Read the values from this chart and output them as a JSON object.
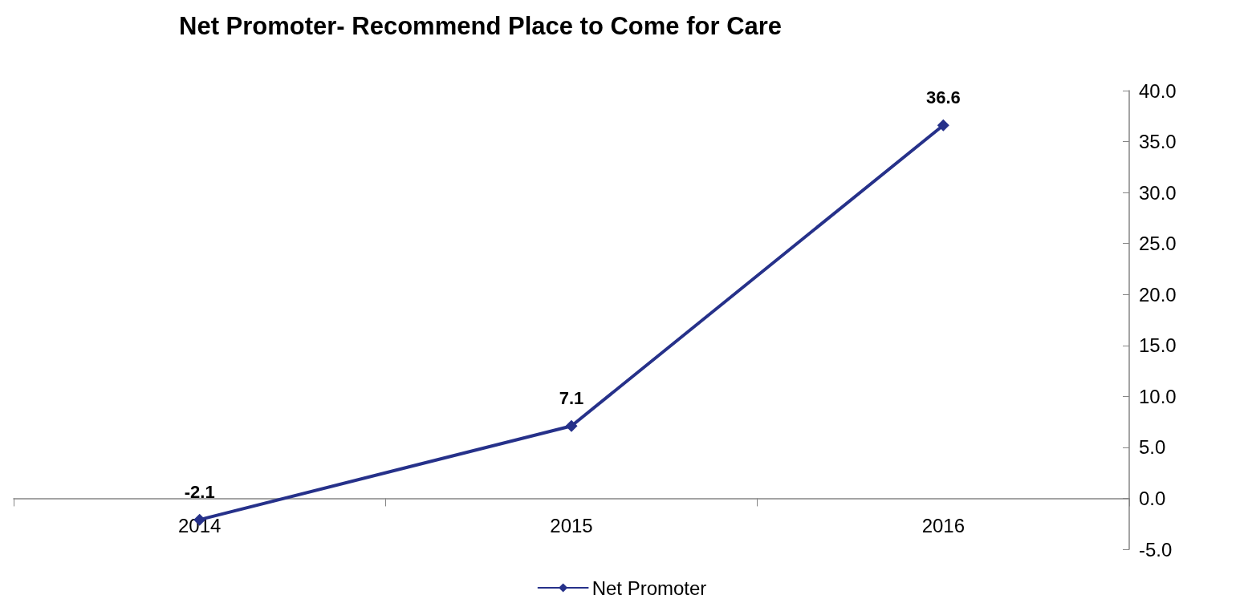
{
  "chart_data": {
    "type": "line",
    "title": "Net Promoter- Recommend Place to Come for Care",
    "categories": [
      "2014",
      "2015",
      "2016"
    ],
    "series": [
      {
        "name": "Net Promoter",
        "color": "#26318a",
        "values": [
          -2.1,
          7.1,
          36.6
        ]
      }
    ],
    "ylim": [
      -5,
      40
    ],
    "yticks": [
      {
        "value": -5,
        "label": "-5.0"
      },
      {
        "value": 0,
        "label": "0.0"
      },
      {
        "value": 5,
        "label": "5.0"
      },
      {
        "value": 10,
        "label": "10.0"
      },
      {
        "value": 15,
        "label": "15.0"
      },
      {
        "value": 20,
        "label": "20.0"
      },
      {
        "value": 25,
        "label": "25.0"
      },
      {
        "value": 30,
        "label": "30.0"
      },
      {
        "value": 35,
        "label": "35.0"
      },
      {
        "value": 40,
        "label": "40.0"
      }
    ],
    "legend": "bottom",
    "marker": "diamond",
    "line_style": "solid",
    "data_labels": true
  }
}
